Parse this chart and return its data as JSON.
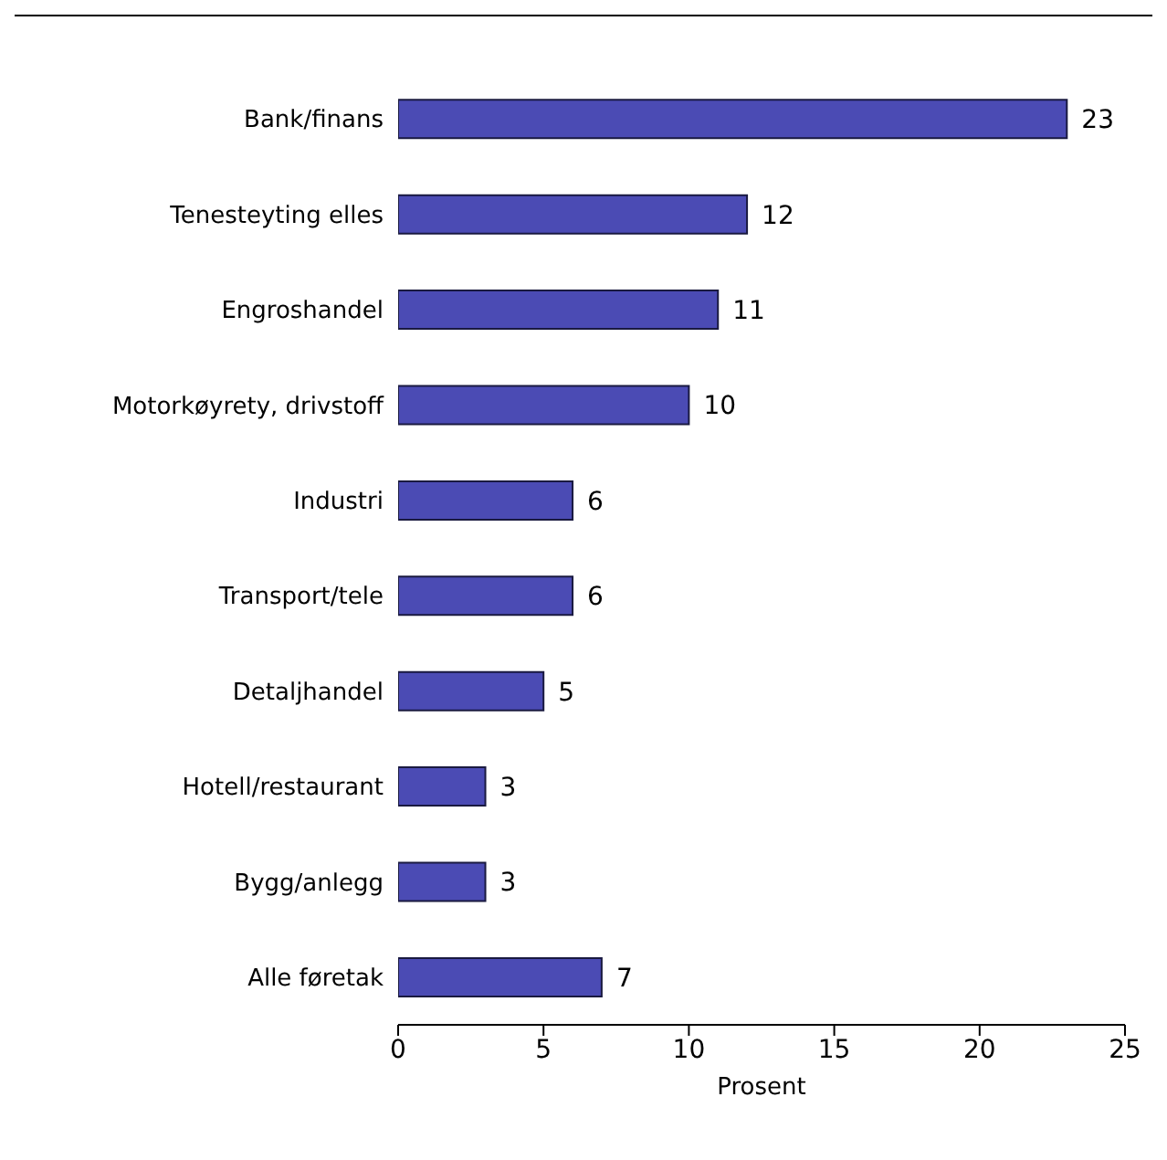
{
  "chart_data": {
    "type": "bar",
    "orientation": "horizontal",
    "xlabel": "Prosent",
    "categories": [
      "Bank/finans",
      "Tenesteyting elles",
      "Engroshandel",
      "Motorkøyrety, drivstoff",
      "Industri",
      "Transport/tele",
      "Detaljhandel",
      "Hotell/restaurant",
      "Bygg/anlegg",
      "Alle føretak"
    ],
    "values": [
      23,
      12,
      11,
      10,
      6,
      6,
      5,
      3,
      3,
      7
    ],
    "color": "#4b4bb4",
    "xlim": [
      0,
      25
    ],
    "xticks": [
      0,
      5,
      10,
      15,
      20,
      25
    ],
    "data_labels": true
  }
}
